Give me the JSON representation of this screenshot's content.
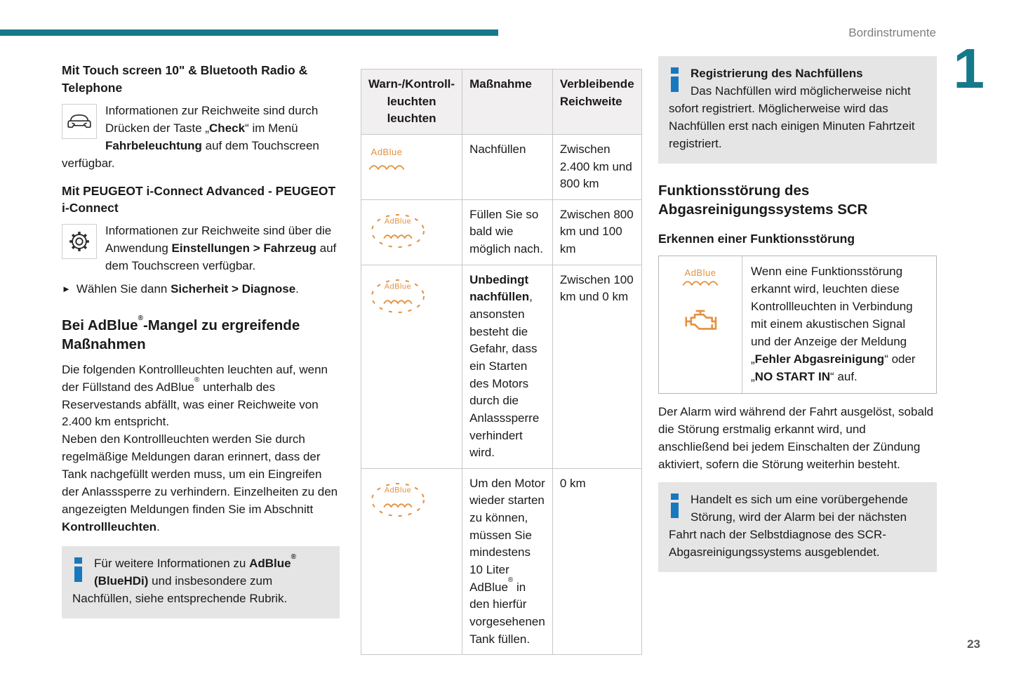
{
  "page": {
    "header_label": "Bordinstrumente",
    "chapter_number": "1",
    "page_number": "23"
  },
  "colors": {
    "teal": "#15798C",
    "orange": "#E5913E",
    "info_blue": "#1878BE",
    "box_gray": "#E6E5E5"
  },
  "icons": {
    "adblue_label": "AdBlue",
    "arrow_bullet": "►",
    "car_icon": "car-front-outline",
    "gear_icon": "settings-gear",
    "info_icon": "information-i",
    "engine_icon": "check-engine-warning"
  },
  "left": {
    "section1": {
      "title": "Mit Touch screen 10\" & Bluetooth Radio & Telephone",
      "body": [
        {
          "t": "Informationen zur Reichweite sind durch Drücken der Taste „"
        },
        {
          "t": "Check",
          "b": true
        },
        {
          "t": "“ im Menü "
        },
        {
          "t": "Fahrbeleuchtung",
          "b": true
        },
        {
          "t": " auf dem Touchscreen verfügbar."
        }
      ]
    },
    "section2": {
      "title": "Mit PEUGEOT i-Connect Advanced - PEUGEOT i-Connect",
      "body": [
        {
          "t": "Informationen zur Reichweite sind über die Anwendung "
        },
        {
          "t": "Einstellungen > Fahrzeug",
          "b": true
        },
        {
          "t": " auf dem Touchscreen verfügbar."
        }
      ],
      "action": [
        {
          "t": "Wählen Sie dann "
        },
        {
          "t": "Sicherheit > Diagnose",
          "b": true
        },
        {
          "t": "."
        }
      ]
    },
    "section3": {
      "title": [
        {
          "t": "Bei AdBlue®-Mangel zu ergreifende Maßnahmen"
        }
      ],
      "p1": [
        {
          "t": "Die folgenden Kontrollleuchten leuchten auf, wenn der Füllstand des AdBlue® unterhalb des Reservestands abfällt, was einer Reichweite von 2.400 km entspricht."
        }
      ],
      "p2": [
        {
          "t": "Neben den Kontrollleuchten werden Sie durch regelmäßige Meldungen daran erinnert, dass der Tank nachgefüllt werden muss, um ein Eingreifen der Anlasssperre zu verhindern. Einzelheiten zu den angezeigten Meldungen finden Sie im Abschnitt "
        },
        {
          "t": "Kontrollleuchten",
          "b": true
        },
        {
          "t": "."
        }
      ]
    },
    "infobox": [
      {
        "t": "Für weitere Informationen zu "
      },
      {
        "t": "AdBlue® (BlueHDi)",
        "b": true
      },
      {
        "t": " und insbesondere zum Nachfüllen, siehe entsprechende Rubrik."
      }
    ]
  },
  "table": {
    "headers": {
      "col1": "Warn-/Kontroll-\nleuchten\nleuchten",
      "col2": "Maßnahme",
      "col3": "Verbleibende\nReichweite"
    },
    "rows": [
      {
        "icon": "adblue-steady",
        "massnahme": [
          {
            "t": "Nachfüllen"
          }
        ],
        "reichweite": "Zwischen 2.400 km und 800 km"
      },
      {
        "icon": "adblue-blinking",
        "massnahme": [
          {
            "t": "Füllen Sie so bald wie möglich nach."
          }
        ],
        "reichweite": "Zwischen 800 km und 100 km"
      },
      {
        "icon": "adblue-blinking",
        "massnahme": [
          {
            "t": "Unbedingt nachfüllen",
            "b": true
          },
          {
            "t": ", ansonsten besteht die Gefahr, dass ein Starten des Motors durch die Anlasssperre verhindert wird."
          }
        ],
        "reichweite": "Zwischen 100 km und 0 km"
      },
      {
        "icon": "adblue-blinking",
        "massnahme": [
          {
            "t": "Um den Motor wieder starten zu können, müssen Sie mindestens 10 Liter AdBlue® in den hierfür vorgesehenen Tank füllen."
          }
        ],
        "reichweite": "0 km"
      }
    ]
  },
  "right": {
    "infobox1": {
      "title": "Registrierung des Nachfüllens",
      "body": "Das Nachfüllen wird möglicherweise nicht sofort registriert. Möglicherweise wird das Nachfüllen erst nach einigen Minuten Fahrtzeit registriert."
    },
    "section_title": "Funktionsstörung des Abgasreinigungssystems SCR",
    "subsection_title": "Erkennen einer Funktionsstörung",
    "warnbox": [
      {
        "t": "Wenn eine Funktionsstörung erkannt wird, leuchten diese Kontrollleuchten in Verbindung mit einem akustischen Signal und der Anzeige der Meldung „"
      },
      {
        "t": "Fehler Abgasreinigung",
        "b": true
      },
      {
        "t": "“ oder „"
      },
      {
        "t": "NO START IN",
        "b": true
      },
      {
        "t": "“ auf."
      }
    ],
    "p1": "Der Alarm wird während der Fahrt ausgelöst, sobald die Störung erstmalig erkannt wird, und anschließend bei jedem Einschalten der Zündung aktiviert, sofern die Störung weiterhin besteht.",
    "infobox2": "Handelt es sich um eine vorübergehende Störung, wird der Alarm bei der nächsten Fahrt nach der Selbstdiagnose des SCR-Abgasreinigungssystems ausgeblendet."
  }
}
